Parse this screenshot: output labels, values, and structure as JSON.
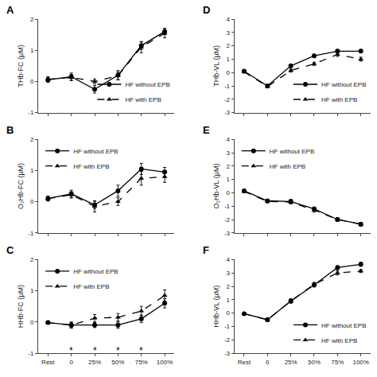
{
  "chart_data": [
    {
      "type": "line",
      "title": "A",
      "categories": [
        "Rest",
        "0",
        "25%",
        "50%",
        "75%",
        "100%"
      ],
      "series": [
        {
          "name": "HF without EPB",
          "color": "#000000",
          "marker": "circle",
          "line_style": "solid",
          "values": [
            0.05,
            0.15,
            -0.25,
            0.2,
            1.15,
            1.6
          ],
          "errors": [
            0.08,
            0.12,
            0.12,
            0.15,
            0.12,
            0.1
          ]
        },
        {
          "name": "HF with EPB",
          "color": "#000000",
          "marker": "triangle-up",
          "line_style": "dash",
          "values": [
            0.07,
            0.13,
            0.0,
            0.18,
            1.1,
            1.55
          ],
          "errors": [
            0.08,
            0.1,
            0.08,
            0.12,
            0.18,
            0.15
          ]
        }
      ],
      "ylabel": "THb-FC (μM)",
      "ylim": [
        -1,
        2
      ],
      "yticks": [
        -1,
        0,
        1,
        2
      ],
      "grid": false,
      "legend": "lower right",
      "tick_labels": "y"
    },
    {
      "type": "line",
      "title": "B",
      "categories": [
        "Rest",
        "0",
        "25%",
        "50%",
        "75%",
        "100%"
      ],
      "series": [
        {
          "name": "HF without EPB",
          "color": "#000000",
          "marker": "circle",
          "line_style": "solid",
          "values": [
            0.1,
            0.25,
            -0.1,
            0.35,
            1.05,
            0.95
          ],
          "errors": [
            0.08,
            0.12,
            0.12,
            0.18,
            0.18,
            0.15
          ]
        },
        {
          "name": "HF with EPB",
          "color": "#000000",
          "marker": "triangle-up",
          "line_style": "dash",
          "values": [
            0.1,
            0.22,
            -0.15,
            0.0,
            0.75,
            0.8
          ],
          "errors": [
            0.07,
            0.1,
            0.18,
            0.12,
            0.22,
            0.18
          ]
        }
      ],
      "ylabel": "O₂Hb-FC (μM)",
      "ylim": [
        -1,
        2
      ],
      "yticks": [
        -1,
        0,
        1,
        2
      ],
      "grid": false,
      "legend": "upper left",
      "tick_labels": "y"
    },
    {
      "type": "line",
      "title": "C",
      "categories": [
        "Rest",
        "0",
        "25%",
        "50%",
        "75%",
        "100%"
      ],
      "series": [
        {
          "name": "HF without EPB",
          "color": "#000000",
          "marker": "circle",
          "line_style": "solid",
          "values": [
            -0.02,
            -0.1,
            -0.1,
            -0.1,
            0.1,
            0.6
          ],
          "errors": [
            0.05,
            0.08,
            0.08,
            0.1,
            0.12,
            0.15
          ]
        },
        {
          "name": "HF with EPB",
          "color": "#000000",
          "marker": "triangle-up",
          "line_style": "dash",
          "values": [
            -0.02,
            -0.1,
            0.12,
            0.15,
            0.35,
            0.85
          ],
          "errors": [
            0.05,
            0.1,
            0.12,
            0.12,
            0.15,
            0.18
          ]
        }
      ],
      "ylabel": "HHb-FC (μM)",
      "ylim": [
        -1,
        2
      ],
      "yticks": [
        -1,
        0,
        1,
        2
      ],
      "grid": false,
      "legend": "upper left",
      "annotations": [
        {
          "text": "*",
          "category": "0"
        },
        {
          "text": "*",
          "category": "25%"
        },
        {
          "text": "*",
          "category": "50%"
        },
        {
          "text": "*",
          "category": "75%"
        }
      ]
    },
    {
      "type": "line",
      "title": "D",
      "categories": [
        "Rest",
        "0",
        "25%",
        "50%",
        "75%",
        "100%"
      ],
      "series": [
        {
          "name": "HF without EPB",
          "color": "#000000",
          "marker": "circle",
          "line_style": "solid",
          "values": [
            0.1,
            -1.0,
            0.5,
            1.25,
            1.6,
            1.6
          ],
          "errors": [
            0.12,
            0.12,
            0.12,
            0.12,
            0.12,
            0.12
          ]
        },
        {
          "name": "HF with EPB",
          "color": "#000000",
          "marker": "triangle-up",
          "line_style": "dash",
          "values": [
            0.05,
            -1.05,
            0.15,
            0.65,
            1.35,
            1.0
          ],
          "errors": [
            0.08,
            0.1,
            0.12,
            0.12,
            0.15,
            0.15
          ]
        }
      ],
      "ylabel": "THb-VL (μM)",
      "ylim": [
        -3,
        4
      ],
      "yticks": [
        -3,
        -2,
        -1,
        0,
        1,
        2,
        3,
        4
      ],
      "grid": false,
      "legend": "lower right",
      "tick_labels": "y"
    },
    {
      "type": "line",
      "title": "E",
      "categories": [
        "Rest",
        "0",
        "25%",
        "50%",
        "75%",
        "100%"
      ],
      "series": [
        {
          "name": "HF without EPB",
          "color": "#000000",
          "marker": "circle",
          "line_style": "solid",
          "values": [
            0.15,
            -0.6,
            -0.65,
            -1.2,
            -2.0,
            -2.35
          ],
          "errors": [
            0.1,
            0.12,
            0.15,
            0.12,
            0.12,
            0.12
          ]
        },
        {
          "name": "HF with EPB",
          "color": "#000000",
          "marker": "triangle-up",
          "line_style": "dash",
          "values": [
            0.1,
            -0.65,
            -0.7,
            -1.3,
            -2.0,
            -2.35
          ],
          "errors": [
            0.08,
            0.1,
            0.12,
            0.15,
            0.12,
            0.12
          ]
        }
      ],
      "ylabel": "O₂Hb-VL (μM)",
      "ylim": [
        -3,
        4
      ],
      "yticks": [
        -3,
        -2,
        -1,
        0,
        1,
        2,
        3,
        4
      ],
      "grid": false,
      "legend": "upper left",
      "tick_labels": "y"
    },
    {
      "type": "line",
      "title": "F",
      "categories": [
        "Rest",
        "0",
        "25%",
        "50%",
        "75%",
        "100%"
      ],
      "series": [
        {
          "name": "HF without EPB",
          "color": "#000000",
          "marker": "circle",
          "line_style": "solid",
          "values": [
            -0.05,
            -0.5,
            0.9,
            2.1,
            3.4,
            3.65
          ],
          "errors": [
            0.1,
            0.12,
            0.15,
            0.15,
            0.15,
            0.15
          ]
        },
        {
          "name": "HF with EPB",
          "color": "#000000",
          "marker": "triangle-up",
          "line_style": "dash",
          "values": [
            -0.05,
            -0.5,
            0.9,
            2.15,
            3.0,
            3.15
          ],
          "errors": [
            0.08,
            0.1,
            0.15,
            0.15,
            0.15,
            0.12
          ]
        }
      ],
      "ylabel": "HHb-VL (μM)",
      "ylim": [
        -3,
        4
      ],
      "yticks": [
        -3,
        -2,
        -1,
        0,
        1,
        2,
        3,
        4
      ],
      "grid": false,
      "legend": "lower right"
    }
  ]
}
